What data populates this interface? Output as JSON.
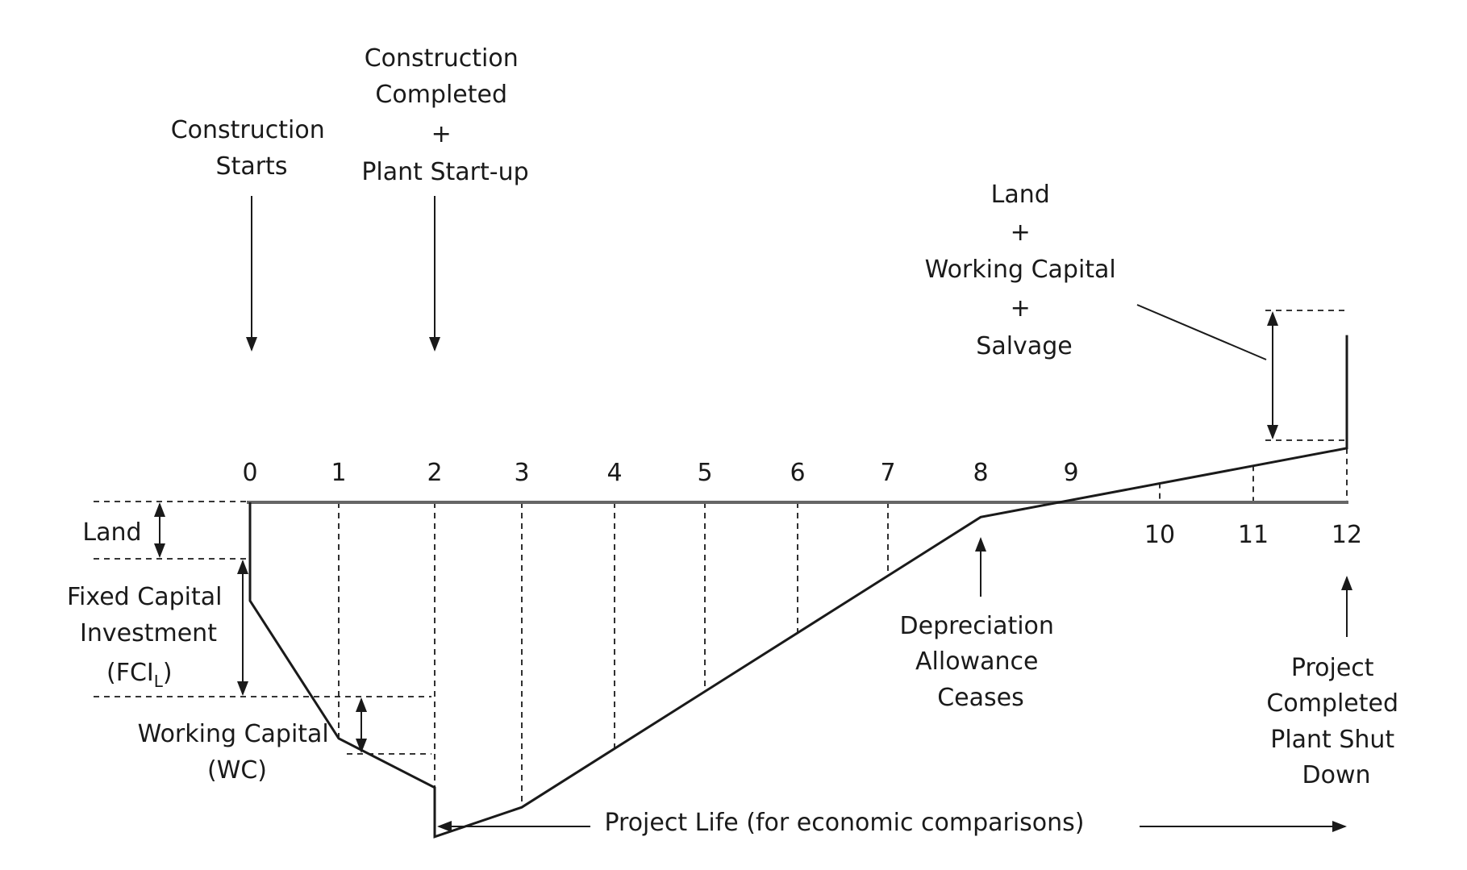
{
  "labels": {
    "construction_starts": [
      "Construction",
      "Starts"
    ],
    "construction_completed": [
      "Construction",
      "Completed",
      "+",
      "Plant Start-up"
    ],
    "land_wc_salvage": [
      "Land",
      "+",
      "Working Capital",
      "+",
      "Salvage"
    ],
    "land": "Land",
    "fixed_capital": [
      "Fixed Capital",
      "Investment"
    ],
    "fci_open": "(FCI",
    "fci_sub": "L",
    "fci_close": ")",
    "working_capital": [
      "Working Capital",
      "(WC)"
    ],
    "depreciation": [
      "Depreciation",
      "Allowance",
      "Ceases"
    ],
    "project_completed": [
      "Project",
      "Completed",
      "Plant Shut",
      "Down"
    ],
    "project_life": "Project Life (for economic comparisons)"
  },
  "year_ticks": [
    "0",
    "1",
    "2",
    "3",
    "4",
    "5",
    "6",
    "7",
    "8",
    "9",
    "10",
    "11",
    "12"
  ],
  "cumulative_cash_curve": {
    "x": [
      0,
      1,
      2,
      2,
      3,
      8,
      12,
      12
    ],
    "y": [
      -1,
      -2.4,
      -2.9,
      -3.4,
      -3.1,
      -0.15,
      0.55,
      1.7
    ]
  },
  "colors": {
    "line": "#1a1a1a",
    "axis": "#666666"
  },
  "icons": [
    "down-arrow-icon",
    "up-arrow-icon",
    "double-headed-arrow-icon",
    "left-arrow-icon",
    "right-arrow-icon"
  ]
}
